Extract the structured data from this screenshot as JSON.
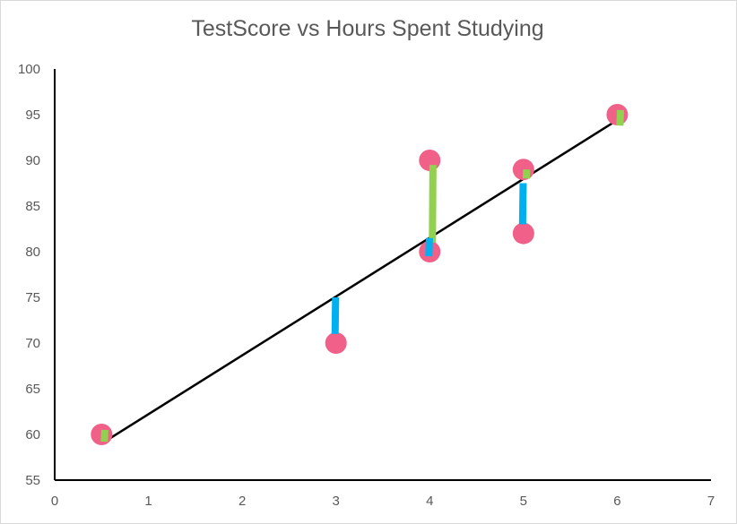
{
  "chart_data": {
    "type": "scatter",
    "title": "TestScore vs Hours Spent Studying",
    "xlabel": "",
    "ylabel": "",
    "xlim": [
      0,
      7
    ],
    "ylim": [
      55,
      100
    ],
    "xticks": [
      0,
      1,
      2,
      3,
      4,
      5,
      6,
      7
    ],
    "yticks": [
      55,
      60,
      65,
      70,
      75,
      80,
      85,
      90,
      95,
      100
    ],
    "grid": false,
    "legend": "none",
    "points": [
      {
        "x": 0.5,
        "y": 60
      },
      {
        "x": 3,
        "y": 70
      },
      {
        "x": 4,
        "y": 80
      },
      {
        "x": 4,
        "y": 90
      },
      {
        "x": 5,
        "y": 82
      },
      {
        "x": 5,
        "y": 89
      },
      {
        "x": 6,
        "y": 95
      }
    ],
    "trendline": {
      "x": [
        0.5,
        6
      ],
      "y": [
        59,
        94.4
      ]
    },
    "residuals": [
      {
        "x": 0.5,
        "from": 59.2,
        "to": 60.5,
        "sign": "positive"
      },
      {
        "x": 3,
        "from": 71,
        "to": 75,
        "sign": "negative"
      },
      {
        "x": 4,
        "from": 81,
        "to": 89.5,
        "sign": "positive"
      },
      {
        "x": 4,
        "from": 79.5,
        "to": 81.5,
        "sign": "negative"
      },
      {
        "x": 5,
        "from": 88,
        "to": 89,
        "sign": "positive"
      },
      {
        "x": 5,
        "from": 83,
        "to": 87.5,
        "sign": "negative"
      },
      {
        "x": 6,
        "from": 93.8,
        "to": 95.5,
        "sign": "positive"
      }
    ],
    "colors": {
      "points": "#f06088",
      "trendline": "#000000",
      "residual_positive": "#92d050",
      "residual_negative": "#00b0f0",
      "axis": "#000000",
      "text": "#595959"
    }
  }
}
